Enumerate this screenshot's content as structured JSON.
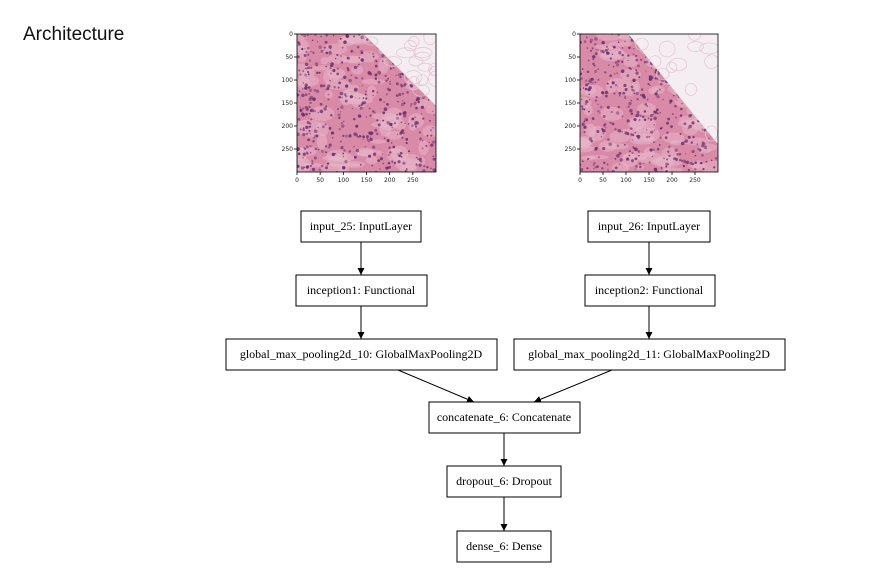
{
  "title": "Architecture",
  "colors": {
    "tissue_base": "#d98aa6",
    "tissue_light": "#e8b6c8",
    "nucleus": "#6a2f6e",
    "fat": "#f4eef2"
  },
  "images": [
    {
      "id": "left",
      "icon": "histology-tissue-image",
      "x_ticks": [
        "0",
        "50",
        "100",
        "150",
        "200",
        "250"
      ],
      "y_ticks": [
        "0",
        "50",
        "100",
        "150",
        "200",
        "250"
      ]
    },
    {
      "id": "right",
      "icon": "histology-tissue-image",
      "x_ticks": [
        "0",
        "50",
        "100",
        "150",
        "200",
        "250"
      ],
      "y_ticks": [
        "0",
        "50",
        "100",
        "150",
        "200",
        "250"
      ]
    }
  ],
  "nodes": {
    "input_25": "input_25: InputLayer",
    "input_26": "input_26: InputLayer",
    "inception1": "inception1: Functional",
    "inception2": "inception2: Functional",
    "gmp_10": "global_max_pooling2d_10: GlobalMaxPooling2D",
    "gmp_11": "global_max_pooling2d_11: GlobalMaxPooling2D",
    "concatenate_6": "concatenate_6: Concatenate",
    "dropout_6": "dropout_6: Dropout",
    "dense_6": "dense_6: Dense"
  },
  "edges": [
    [
      "input_25",
      "inception1"
    ],
    [
      "inception1",
      "gmp_10"
    ],
    [
      "input_26",
      "inception2"
    ],
    [
      "inception2",
      "gmp_11"
    ],
    [
      "gmp_10",
      "concatenate_6"
    ],
    [
      "gmp_11",
      "concatenate_6"
    ],
    [
      "concatenate_6",
      "dropout_6"
    ],
    [
      "dropout_6",
      "dense_6"
    ]
  ]
}
